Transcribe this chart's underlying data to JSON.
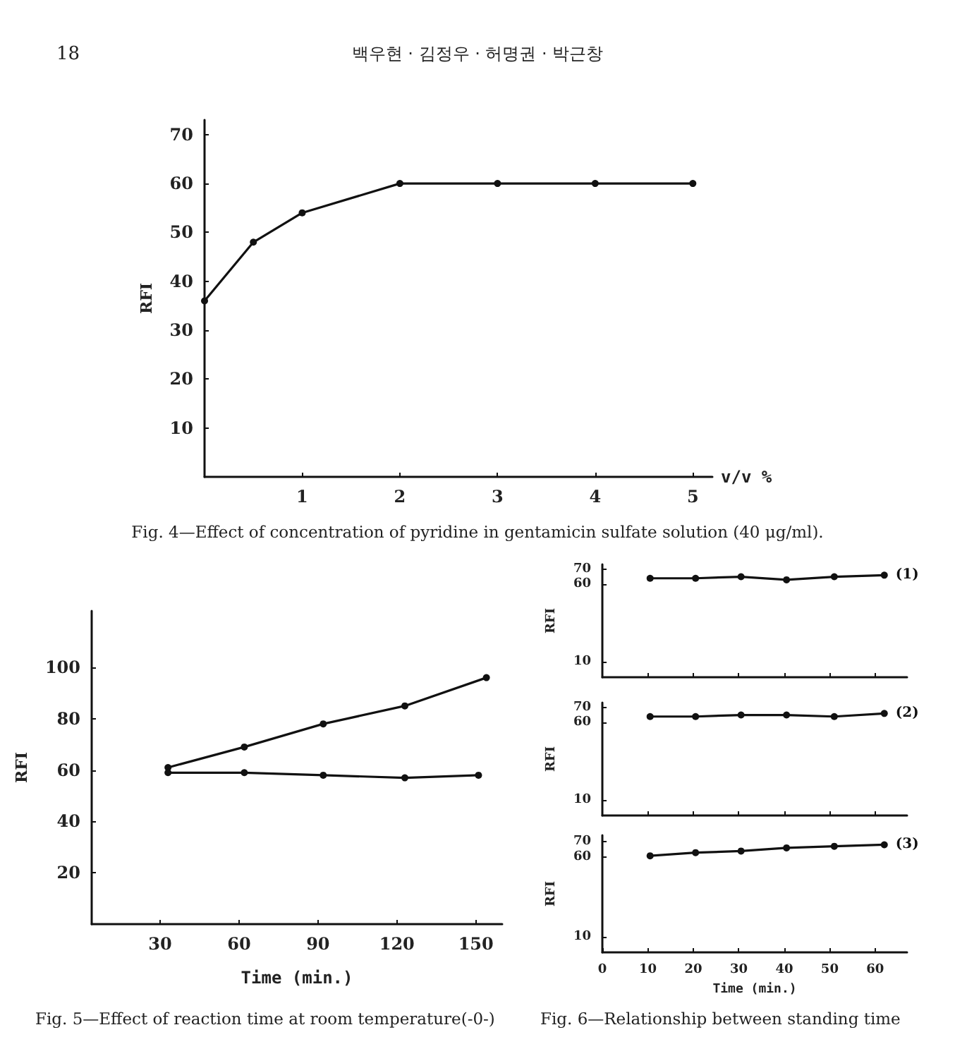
{
  "chart_data": [
    {
      "type": "line",
      "title": "Fig. 4—Effect of concentration of pyridine in gentamicin sulfate solution (40 μg/ml).",
      "annotations": [
        "18",
        "백우현 · 김정우 · 허명권 · 박근창"
      ],
      "xlabel": "v/v %",
      "ylabel": "RFI",
      "x": [
        0,
        0.5,
        1,
        2,
        3,
        4,
        5
      ],
      "series": [
        {
          "color": "#111111",
          "values": [
            36,
            48,
            54,
            60,
            60,
            60,
            60
          ]
        }
      ],
      "xlim": [
        0,
        5.2
      ],
      "xticks": [
        1,
        2,
        3,
        4,
        5
      ],
      "ylim": [
        0,
        73
      ],
      "yticks": [
        10,
        20,
        30,
        40,
        50,
        60,
        70
      ],
      "marker": "circle",
      "grid": false
    },
    {
      "type": "line",
      "title": "Fig. 5—Effect of reaction time at room temperature(-0-)",
      "xlabel": "Time (min.)",
      "ylabel": "RFI",
      "series": [
        {
          "color": "#111111",
          "x": [
            33,
            62,
            92,
            123,
            154
          ],
          "values": [
            61,
            69,
            78,
            85,
            96
          ]
        },
        {
          "color": "#111111",
          "x": [
            33,
            62,
            92,
            123,
            151
          ],
          "values": [
            59,
            59,
            58,
            57,
            58
          ]
        }
      ],
      "xlim": [
        4,
        160
      ],
      "xticks": [
        30,
        60,
        90,
        120,
        150
      ],
      "ylim": [
        0,
        122
      ],
      "yticks": [
        20,
        40,
        60,
        80,
        100
      ],
      "marker": "circle",
      "grid": false
    },
    {
      "type": "line",
      "ylabel": "RFI",
      "x": [
        10.5,
        20.5,
        30.5,
        40.5,
        51,
        62
      ],
      "series": [
        {
          "name": "(1)",
          "color": "#111111",
          "values": [
            64,
            64,
            65,
            63,
            65,
            66
          ]
        }
      ],
      "xlim": [
        0,
        67
      ],
      "xticks": [
        10,
        20,
        30,
        40,
        50,
        60
      ],
      "ylim": [
        0,
        73
      ],
      "yticks": [
        10,
        60,
        70
      ],
      "tick_labels": "y",
      "marker": "circle",
      "grid": false,
      "legend": "right"
    },
    {
      "type": "line",
      "ylabel": "RFI",
      "x": [
        10.5,
        20.5,
        30.5,
        40.5,
        51,
        62
      ],
      "series": [
        {
          "name": "(2)",
          "color": "#111111",
          "values": [
            64,
            64,
            65,
            65,
            64,
            66
          ]
        }
      ],
      "xlim": [
        0,
        67
      ],
      "xticks": [
        10,
        20,
        30,
        40,
        50,
        60
      ],
      "ylim": [
        0,
        73
      ],
      "yticks": [
        10,
        60,
        70
      ],
      "tick_labels": "y",
      "marker": "circle",
      "grid": false,
      "legend": "right"
    },
    {
      "type": "line",
      "title": "Fig. 6—Relationship between standing time",
      "xlabel": "Time (min.)",
      "ylabel": "RFI",
      "x": [
        10.5,
        20.5,
        30.5,
        40.5,
        51,
        62
      ],
      "series": [
        {
          "name": "(3)",
          "color": "#111111",
          "values": [
            61,
            63,
            64,
            66,
            67,
            68
          ]
        }
      ],
      "xlim": [
        0,
        67
      ],
      "xticks": [
        0,
        10,
        20,
        30,
        40,
        50,
        60
      ],
      "ylim": [
        0,
        74
      ],
      "yticks": [
        10,
        60,
        70
      ],
      "marker": "circle",
      "grid": false,
      "legend": "right"
    }
  ]
}
